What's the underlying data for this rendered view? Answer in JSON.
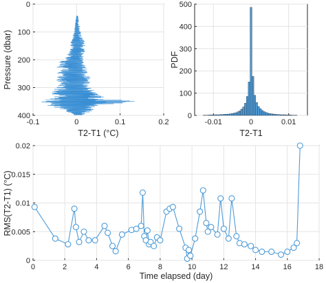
{
  "chart_data": [
    {
      "type": "line",
      "xlabel": "T2-T1 (°C)",
      "ylabel": "Pressure (dbar)",
      "xlim": [
        -0.1,
        0.2
      ],
      "ylim": [
        0,
        400
      ],
      "y_reversed": true,
      "xticks": [
        -0.1,
        0,
        0.1,
        0.2
      ],
      "xticklabels": [
        "-0.1",
        "0",
        "0.1",
        "0.2"
      ],
      "yticks": [
        0,
        100,
        200,
        300,
        400
      ],
      "yticklabels": [
        "400",
        "300",
        "200",
        "100",
        "0"
      ],
      "grid": true,
      "color": "#3a8fd4",
      "envelope": [
        {
          "p": 358,
          "lo": 0.0,
          "hi": 0.004
        },
        {
          "p": 345,
          "lo": -0.002,
          "hi": 0.005
        },
        {
          "p": 330,
          "lo": -0.004,
          "hi": 0.005
        },
        {
          "p": 320,
          "lo": -0.004,
          "hi": 0.008
        },
        {
          "p": 300,
          "lo": -0.006,
          "hi": 0.01
        },
        {
          "p": 285,
          "lo": -0.01,
          "hi": 0.012
        },
        {
          "p": 270,
          "lo": -0.012,
          "hi": 0.018
        },
        {
          "p": 255,
          "lo": -0.015,
          "hi": 0.02
        },
        {
          "p": 240,
          "lo": -0.015,
          "hi": 0.022
        },
        {
          "p": 225,
          "lo": -0.018,
          "hi": 0.018
        },
        {
          "p": 205,
          "lo": -0.03,
          "hi": 0.015
        },
        {
          "p": 185,
          "lo": -0.045,
          "hi": 0.02
        },
        {
          "p": 170,
          "lo": -0.05,
          "hi": 0.025
        },
        {
          "p": 150,
          "lo": -0.045,
          "hi": 0.025
        },
        {
          "p": 130,
          "lo": -0.05,
          "hi": 0.035
        },
        {
          "p": 115,
          "lo": -0.04,
          "hi": 0.03
        },
        {
          "p": 100,
          "lo": -0.05,
          "hi": 0.035
        },
        {
          "p": 90,
          "lo": -0.055,
          "hi": 0.04
        },
        {
          "p": 80,
          "lo": -0.06,
          "hi": 0.045
        },
        {
          "p": 70,
          "lo": -0.06,
          "hi": 0.06
        },
        {
          "p": 60,
          "lo": -0.07,
          "hi": 0.075
        },
        {
          "p": 50,
          "lo": -0.09,
          "hi": 0.155
        },
        {
          "p": 44,
          "lo": -0.08,
          "hi": 0.1
        },
        {
          "p": 36,
          "lo": -0.07,
          "hi": 0.05
        },
        {
          "p": 28,
          "lo": -0.05,
          "hi": 0.045
        },
        {
          "p": 20,
          "lo": -0.04,
          "hi": 0.04
        },
        {
          "p": 12,
          "lo": -0.02,
          "hi": 0.03
        },
        {
          "p": 5,
          "lo": -0.01,
          "hi": 0.02
        }
      ]
    },
    {
      "type": "bar",
      "xlabel": "T2-T1",
      "ylabel": "PDF",
      "xlim": [
        -0.015,
        0.015
      ],
      "ylim": [
        0,
        500
      ],
      "xticks": [
        -0.01,
        0,
        0.01
      ],
      "xticklabels": [
        "-0.01",
        "0",
        "0.01"
      ],
      "yticks": [
        0,
        100,
        200,
        300,
        400,
        500
      ],
      "yticklabels": [
        "0",
        "100",
        "200",
        "300",
        "400",
        "500"
      ],
      "grid": true,
      "color": "#4d9ad6",
      "bin_width": 0.0005,
      "bins": [
        {
          "x": -0.0125,
          "v": 1
        },
        {
          "x": -0.012,
          "v": 1
        },
        {
          "x": -0.0115,
          "v": 1
        },
        {
          "x": -0.011,
          "v": 2
        },
        {
          "x": -0.0105,
          "v": 2
        },
        {
          "x": -0.01,
          "v": 2
        },
        {
          "x": -0.0095,
          "v": 3
        },
        {
          "x": -0.009,
          "v": 3
        },
        {
          "x": -0.0085,
          "v": 3
        },
        {
          "x": -0.008,
          "v": 4
        },
        {
          "x": -0.0075,
          "v": 4
        },
        {
          "x": -0.007,
          "v": 5
        },
        {
          "x": -0.0065,
          "v": 5
        },
        {
          "x": -0.006,
          "v": 6
        },
        {
          "x": -0.0055,
          "v": 7
        },
        {
          "x": -0.005,
          "v": 8
        },
        {
          "x": -0.0045,
          "v": 10
        },
        {
          "x": -0.004,
          "v": 12
        },
        {
          "x": -0.0035,
          "v": 16
        },
        {
          "x": -0.003,
          "v": 20
        },
        {
          "x": -0.0025,
          "v": 28
        },
        {
          "x": -0.002,
          "v": 38
        },
        {
          "x": -0.0015,
          "v": 55
        },
        {
          "x": -0.001,
          "v": 85
        },
        {
          "x": -0.0005,
          "v": 150
        },
        {
          "x": 0.0,
          "v": 485
        },
        {
          "x": 0.0005,
          "v": 175
        },
        {
          "x": 0.001,
          "v": 90
        },
        {
          "x": 0.0015,
          "v": 58
        },
        {
          "x": 0.002,
          "v": 40
        },
        {
          "x": 0.0025,
          "v": 30
        },
        {
          "x": 0.003,
          "v": 22
        },
        {
          "x": 0.0035,
          "v": 17
        },
        {
          "x": 0.004,
          "v": 13
        },
        {
          "x": 0.0045,
          "v": 10
        },
        {
          "x": 0.005,
          "v": 8
        },
        {
          "x": 0.0055,
          "v": 7
        },
        {
          "x": 0.006,
          "v": 6
        },
        {
          "x": 0.0065,
          "v": 5
        },
        {
          "x": 0.007,
          "v": 4
        },
        {
          "x": 0.0075,
          "v": 4
        },
        {
          "x": 0.008,
          "v": 3
        },
        {
          "x": 0.0085,
          "v": 3
        },
        {
          "x": 0.009,
          "v": 3
        },
        {
          "x": 0.0095,
          "v": 2
        },
        {
          "x": 0.01,
          "v": 2
        },
        {
          "x": 0.0105,
          "v": 2
        },
        {
          "x": 0.011,
          "v": 1
        },
        {
          "x": 0.0115,
          "v": 1
        },
        {
          "x": 0.012,
          "v": 1
        }
      ]
    },
    {
      "type": "line",
      "xlabel": "Time elapsed (day)",
      "ylabel": "RMS(T2-T1) (°C)",
      "xlim": [
        0,
        18
      ],
      "ylim": [
        0,
        0.02
      ],
      "xticks": [
        0,
        2,
        4,
        6,
        8,
        10,
        12,
        14,
        16,
        18
      ],
      "xticklabels": [
        "0",
        "2",
        "4",
        "6",
        "8",
        "10",
        "12",
        "14",
        "16",
        "18"
      ],
      "yticks": [
        0,
        0.005,
        0.01,
        0.015,
        0.02
      ],
      "yticklabels": [
        "0",
        "0.005",
        "0.01",
        "0.015",
        "0.02"
      ],
      "grid": true,
      "color": "#4d9ad6",
      "marker": "circle",
      "x": [
        0.1,
        1.4,
        2.2,
        2.6,
        2.7,
        2.9,
        3.2,
        3.5,
        3.9,
        4.5,
        4.7,
        5.0,
        5.2,
        5.6,
        6.2,
        6.5,
        6.8,
        6.9,
        7.0,
        7.1,
        7.2,
        7.3,
        7.4,
        7.6,
        7.8,
        8.0,
        8.4,
        8.6,
        8.8,
        9.2,
        9.6,
        9.7,
        9.8,
        9.9,
        10.2,
        10.5,
        10.7,
        10.9,
        11.0,
        11.2,
        11.6,
        11.8,
        12.0,
        12.3,
        12.5,
        12.8,
        13.0,
        13.3,
        13.7,
        14.0,
        14.4,
        15.0,
        15.6,
        16.0,
        16.4,
        16.6,
        16.8
      ],
      "y": [
        0.0093,
        0.0038,
        0.0028,
        0.009,
        0.0058,
        0.0032,
        0.005,
        0.0035,
        0.0035,
        0.006,
        0.0048,
        0.0025,
        0.0016,
        0.0045,
        0.0053,
        0.0055,
        0.006,
        0.0118,
        0.0042,
        0.0035,
        0.0052,
        0.0028,
        0.0032,
        0.0025,
        0.004,
        0.0035,
        0.0085,
        0.009,
        0.0093,
        0.0055,
        0.0022,
        0.0003,
        0.0018,
        0.0008,
        0.0038,
        0.0085,
        0.0122,
        0.0065,
        0.005,
        0.0058,
        0.0045,
        0.0108,
        0.0055,
        0.0038,
        0.0108,
        0.0042,
        0.003,
        0.0028,
        0.0025,
        0.0018,
        0.0015,
        0.0015,
        0.001,
        0.0015,
        0.0022,
        0.003,
        0.02
      ]
    }
  ]
}
